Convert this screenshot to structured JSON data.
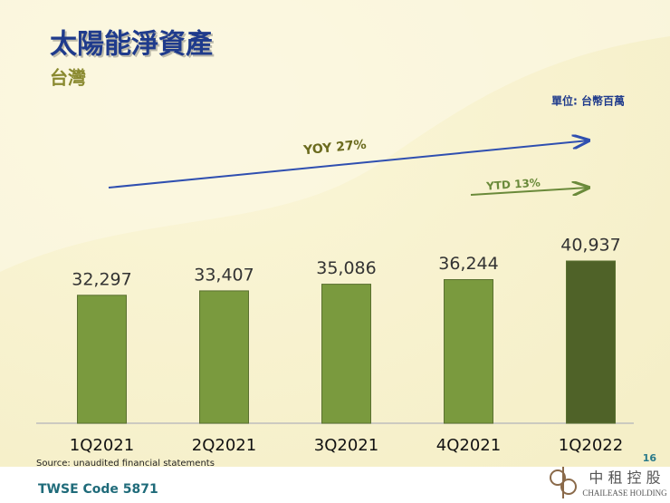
{
  "chart_data": {
    "type": "bar",
    "title": "太陽能淨資產",
    "subtitle": "台灣",
    "unit_label": "單位: 台幣百萬",
    "categories": [
      "1Q2021",
      "2Q2021",
      "3Q2021",
      "4Q2021",
      "1Q2022"
    ],
    "values": [
      32297,
      33407,
      35086,
      36244,
      40937
    ],
    "value_labels": [
      "32,297",
      "33,407",
      "35,086",
      "36,244",
      "40,937"
    ],
    "colors": [
      "#7a9a3e",
      "#7a9a3e",
      "#7a9a3e",
      "#7a9a3e",
      "#4f6228"
    ],
    "annotations": [
      "YOY 27%",
      "YTD 13%"
    ],
    "source": "Source: unaudited financial statements",
    "page_number": "16",
    "footer": "TWSE Code 5871",
    "logo_text": "中 租 控 股",
    "logo_subtext": "CHAILEASE HOLDING"
  }
}
